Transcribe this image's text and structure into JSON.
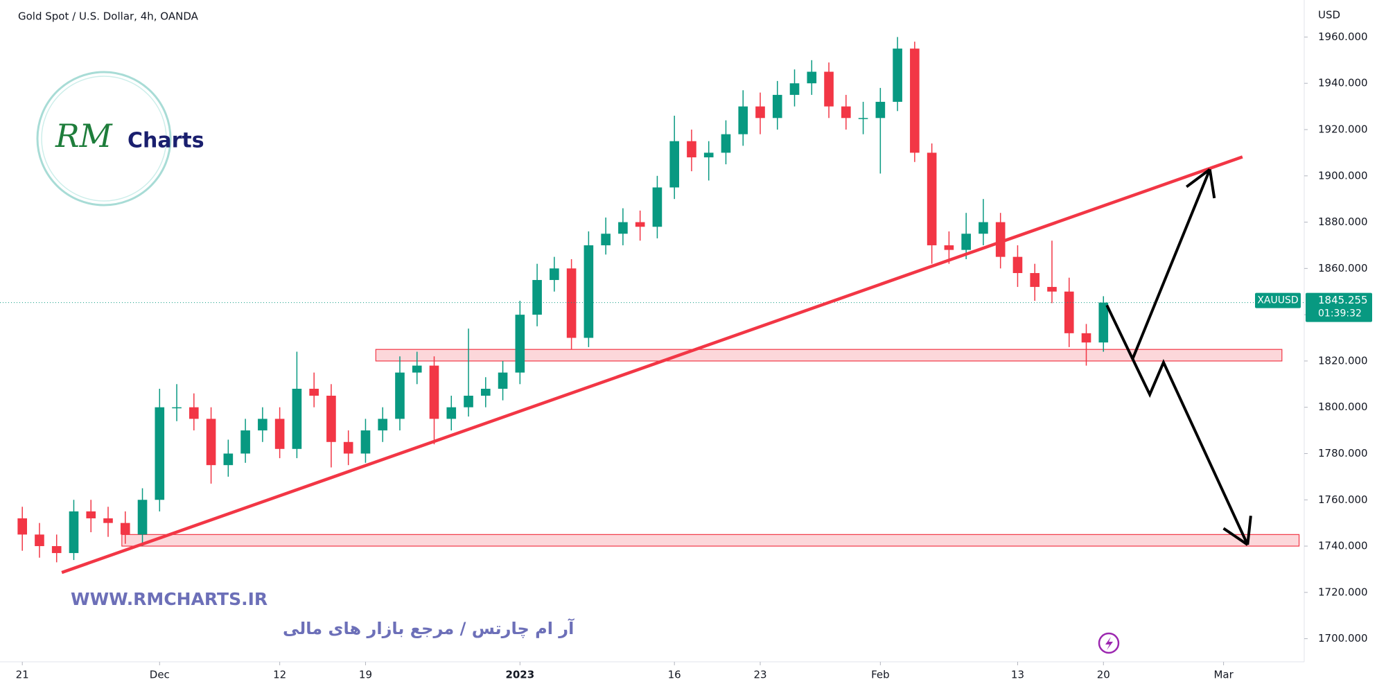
{
  "chart_data": {
    "type": "candlestick",
    "title": "Gold Spot / U.S. Dollar, 4h, OANDA",
    "y_unit": "USD",
    "x": [
      0,
      1,
      2,
      3,
      4,
      5,
      6,
      7,
      8,
      9,
      10,
      11,
      12,
      13,
      14,
      15,
      16,
      17,
      18,
      19,
      20,
      21,
      22,
      23,
      24,
      25,
      26,
      27,
      28,
      29,
      30,
      31,
      32,
      33,
      34,
      35,
      36,
      37,
      38,
      39,
      40,
      41,
      42,
      43,
      44,
      45,
      46,
      47,
      48,
      49,
      50,
      51,
      52,
      53,
      54,
      55,
      56,
      57,
      58,
      59,
      60,
      61,
      62,
      63
    ],
    "series": [
      {
        "name": "XAUUSD",
        "up_color": "#089981",
        "down_color": "#f23645",
        "open": [
          1752,
          1745,
          1740,
          1737,
          1755,
          1752,
          1750,
          1745,
          1760,
          1800,
          1800,
          1795,
          1775,
          1780,
          1790,
          1795,
          1782,
          1808,
          1805,
          1785,
          1780,
          1790,
          1795,
          1815,
          1818,
          1795,
          1800,
          1805,
          1808,
          1815,
          1840,
          1855,
          1860,
          1830,
          1870,
          1875,
          1880,
          1878,
          1895,
          1915,
          1908,
          1910,
          1918,
          1930,
          1925,
          1935,
          1940,
          1945,
          1930,
          1925,
          1925,
          1932,
          1955,
          1910,
          1870,
          1868,
          1875,
          1880,
          1865,
          1858,
          1852,
          1850,
          1832,
          1828
        ],
        "high": [
          1757,
          1750,
          1745,
          1760,
          1760,
          1757,
          1755,
          1765,
          1808,
          1810,
          1806,
          1800,
          1786,
          1795,
          1800,
          1800,
          1824,
          1815,
          1810,
          1790,
          1795,
          1800,
          1822,
          1824,
          1822,
          1805,
          1834,
          1813,
          1820,
          1846,
          1862,
          1865,
          1864,
          1876,
          1882,
          1886,
          1885,
          1900,
          1926,
          1920,
          1915,
          1924,
          1937,
          1936,
          1941,
          1946,
          1950,
          1949,
          1935,
          1932,
          1938,
          1960,
          1958,
          1914,
          1876,
          1884,
          1890,
          1884,
          1870,
          1862,
          1872,
          1856,
          1836,
          1848
        ],
        "low": [
          1738,
          1735,
          1733,
          1734,
          1746,
          1744,
          1741,
          1740,
          1755,
          1794,
          1790,
          1767,
          1770,
          1776,
          1785,
          1778,
          1778,
          1800,
          1774,
          1775,
          1776,
          1785,
          1790,
          1810,
          1784,
          1790,
          1796,
          1800,
          1803,
          1810,
          1835,
          1850,
          1825,
          1826,
          1866,
          1870,
          1872,
          1873,
          1890,
          1902,
          1898,
          1905,
          1913,
          1918,
          1920,
          1930,
          1935,
          1925,
          1920,
          1918,
          1901,
          1928,
          1906,
          1862,
          1862,
          1864,
          1870,
          1860,
          1852,
          1846,
          1845,
          1826,
          1818,
          1824
        ],
        "close": [
          1745,
          1740,
          1737,
          1755,
          1752,
          1750,
          1745,
          1760,
          1800,
          1800,
          1795,
          1775,
          1780,
          1790,
          1795,
          1782,
          1808,
          1805,
          1785,
          1780,
          1790,
          1795,
          1815,
          1818,
          1795,
          1800,
          1805,
          1808,
          1815,
          1840,
          1855,
          1860,
          1830,
          1870,
          1875,
          1880,
          1878,
          1895,
          1915,
          1908,
          1910,
          1918,
          1930,
          1925,
          1935,
          1940,
          1945,
          1930,
          1925,
          1925,
          1932,
          1955,
          1910,
          1870,
          1868,
          1875,
          1880,
          1865,
          1858,
          1852,
          1850,
          1832,
          1828,
          1845.255
        ]
      }
    ],
    "countdown": "01:39:32",
    "xlim": [
      -1.3,
      74.7
    ],
    "ylim": [
      1690,
      1976
    ],
    "xticks": [
      {
        "value": 0,
        "label": "21"
      },
      {
        "value": 8,
        "label": "Dec"
      },
      {
        "value": 15,
        "label": "12"
      },
      {
        "value": 20,
        "label": "19"
      },
      {
        "value": 29,
        "label": "2023"
      },
      {
        "value": 38,
        "label": "16"
      },
      {
        "value": 43,
        "label": "23"
      },
      {
        "value": 50,
        "label": "Feb"
      },
      {
        "value": 58,
        "label": "13"
      },
      {
        "value": 63,
        "label": "20"
      },
      {
        "value": 70,
        "label": "Mar"
      }
    ],
    "yticks": [
      {
        "value": 1960,
        "label": "1960.000"
      },
      {
        "value": 1940,
        "label": "1940.000"
      },
      {
        "value": 1920,
        "label": "1920.000"
      },
      {
        "value": 1900,
        "label": "1900.000"
      },
      {
        "value": 1880,
        "label": "1880.000"
      },
      {
        "value": 1860,
        "label": "1860.000"
      },
      {
        "value": 1840,
        "label": "1840.000"
      },
      {
        "value": 1820,
        "label": "1820.000"
      },
      {
        "value": 1800,
        "label": "1800.000"
      },
      {
        "value": 1780,
        "label": "1780.000"
      },
      {
        "value": 1760,
        "label": "1760.000"
      },
      {
        "value": 1740,
        "label": "1740.000"
      },
      {
        "value": 1720,
        "label": "1720.000"
      },
      {
        "value": 1700,
        "label": "1700.000"
      }
    ],
    "zones": [
      {
        "x": [
          20.6,
          73.4
        ],
        "y": [
          1820,
          1825
        ],
        "color": "#f23645"
      },
      {
        "x": [
          5.8,
          74.4
        ],
        "y": [
          1740,
          1745
        ],
        "color": "#f23645"
      }
    ],
    "trendline": {
      "x": [
        2.3,
        71.1
      ],
      "y": [
        1728.6,
        1908.2
      ],
      "color": "#f23645"
    },
    "projection": [
      {
        "x": [
          63.2,
          64.7,
          65.7,
          66.5,
          71.4
        ],
        "y": [
          1844.1,
          1820.9,
          1805.5,
          1819.4,
          1740.6
        ],
        "color": "#000000"
      },
      {
        "x": [
          64.7,
          69.2
        ],
        "y": [
          1820.9,
          1902.8
        ],
        "color": "#000000"
      }
    ]
  },
  "branding": {
    "logo_mark": "RM",
    "logo_text": "Charts",
    "website": "WWW.RMCHARTS.IR",
    "tagline": "آر ام چارتس / مرجع بازار های مالی"
  }
}
